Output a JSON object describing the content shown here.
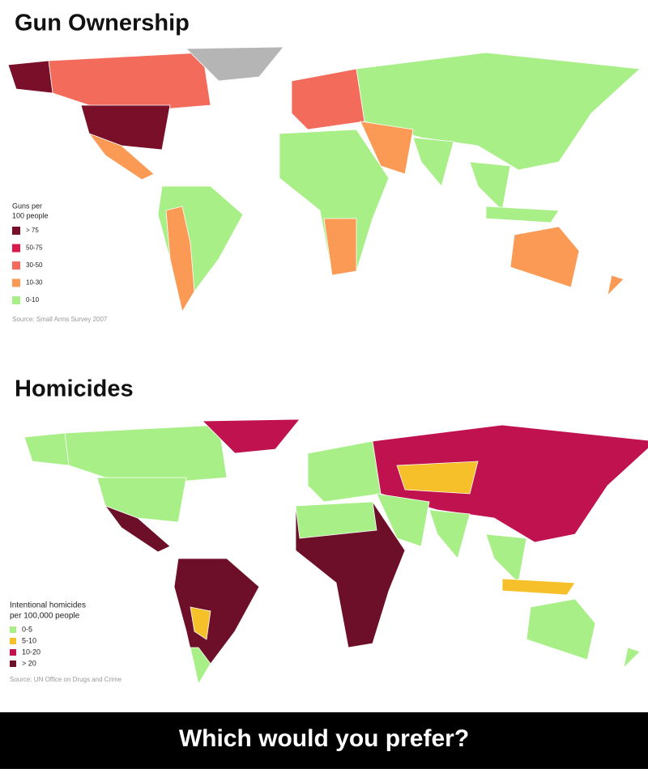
{
  "panels": [
    {
      "title": "Gun Ownership",
      "legend": {
        "title_lines": [
          "Guns per",
          "100 people"
        ],
        "items": [
          {
            "label": "> 75",
            "color": "#7a0f2a"
          },
          {
            "label": "50-75",
            "color": "#d81b4a"
          },
          {
            "label": "30-50",
            "color": "#f26b5b"
          },
          {
            "label": "10-30",
            "color": "#fa9a55"
          },
          {
            "label": "0-10",
            "color": "#a8ef88"
          }
        ]
      },
      "source": "Source: Small Arms Survey 2007"
    },
    {
      "title": "Homicides",
      "legend": {
        "title_lines": [
          "Intentional homicides",
          "per 100,000 people"
        ],
        "items": [
          {
            "label": "0-5",
            "color": "#a8ef88"
          },
          {
            "label": "5-10",
            "color": "#f5c02a"
          },
          {
            "label": "10-20",
            "color": "#c0124e"
          },
          {
            "label": "> 20",
            "color": "#6e0f2a"
          }
        ]
      },
      "source": "Source: UN Office on Drugs and Crime"
    }
  ],
  "caption": "Which would you prefer?"
}
